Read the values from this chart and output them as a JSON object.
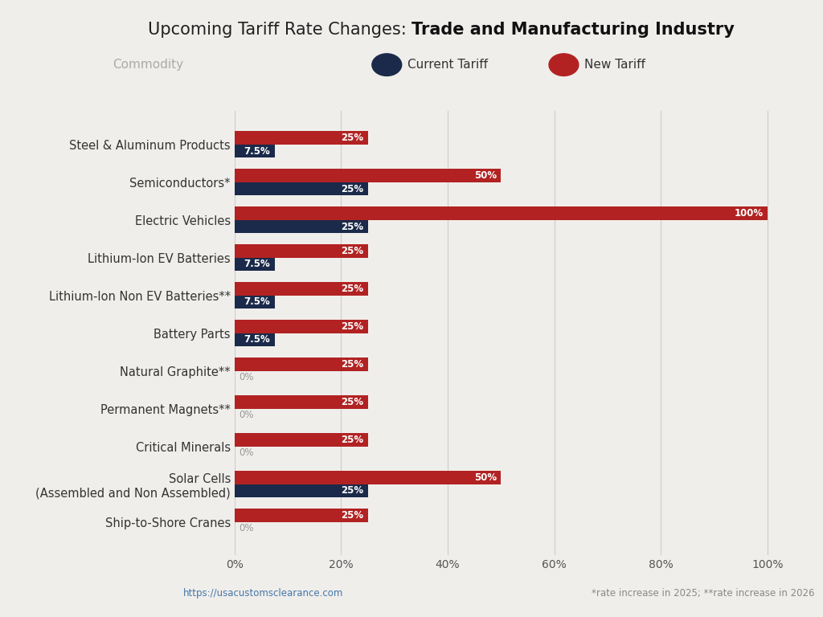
{
  "title_regular": "Upcoming Tariff Rate Changes: ",
  "title_bold": "Trade and Manufacturing Industry",
  "categories": [
    "Steel & Aluminum Products",
    "Semiconductors*",
    "Electric Vehicles",
    "Lithium-Ion EV Batteries",
    "Lithium-Ion Non EV Batteries**",
    "Battery Parts",
    "Natural Graphite**",
    "Permanent Magnets**",
    "Critical Minerals",
    "Solar Cells\n(Assembled and Non Assembled)",
    "Ship-to-Shore Cranes"
  ],
  "current_tariffs": [
    7.5,
    25,
    25,
    7.5,
    7.5,
    7.5,
    0,
    0,
    0,
    25,
    0
  ],
  "new_tariffs": [
    25,
    50,
    100,
    25,
    25,
    25,
    25,
    25,
    25,
    50,
    25
  ],
  "current_color": "#1B2A4A",
  "new_color": "#B22222",
  "bg_color": "#F0EEEB",
  "grid_color": "#CCCCCC",
  "bar_height": 0.35,
  "xlim": [
    0,
    105
  ],
  "xticks": [
    0,
    20,
    40,
    60,
    80,
    100
  ],
  "xticklabels": [
    "0%",
    "20%",
    "40%",
    "60%",
    "80%",
    "100%"
  ],
  "legend_commodity_label": "Commodity",
  "legend_current_label": "Current Tariff",
  "legend_new_label": "New Tariff",
  "footnote": "*rate increase in 2025; **rate increase in 2026",
  "website": "https://usacustomsclearance.com"
}
